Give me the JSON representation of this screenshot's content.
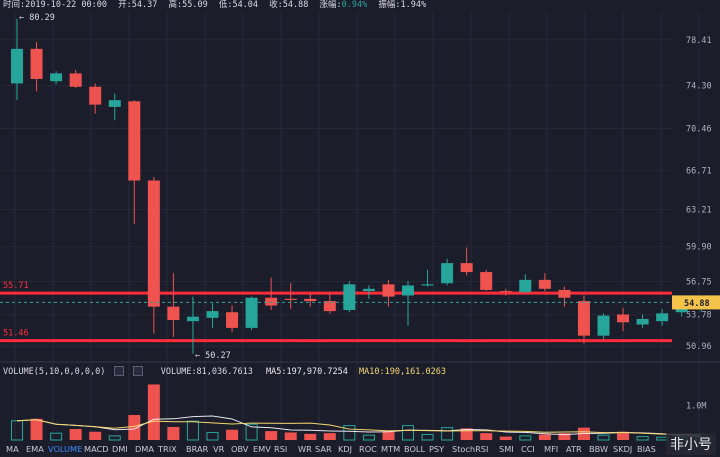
{
  "header": {
    "time_label": "时间:",
    "time": "2019-10-22 00:00",
    "open_label": "开:",
    "open": "54.37",
    "high_label": "高:",
    "high": "55.09",
    "low_label": "低:",
    "low": "54.04",
    "close_label": "收:",
    "close": "54.88",
    "change_label": "涨幅:",
    "change": "0.94%",
    "amplitude_label": "振幅:",
    "amplitude": "1.94%"
  },
  "volume_legend": {
    "label": "VOLUME(5,10,0,0,0,0)",
    "volume": "VOLUME:81,036.7613",
    "ma5": "MA5:197,970.7254",
    "ma10": "MA10:190,161.0263"
  },
  "tabs": [
    "MA",
    "EMA",
    "VOLUME",
    "MACD",
    "DMI",
    "DMA",
    "TRIX",
    "BRAR",
    "VR",
    "OBV",
    "EMV",
    "RSI",
    "WR",
    "SAR",
    "KDJ",
    "ROC",
    "MTM",
    "BOLL",
    "PSY",
    "StochRSI",
    "SMI",
    "CCI",
    "MFI",
    "ATR",
    "BBW",
    "SKDJ",
    "BIAS"
  ],
  "active_tab": "VOLUME",
  "watermark": "非小号",
  "colors": {
    "up": "#26a69a",
    "down": "#ef5350",
    "bg": "#1c1d2b",
    "level_line": "#ff2d3a",
    "ma5": "#e8e8ee",
    "ma10": "#f5d76e",
    "current_price_tag": "#f5c24a"
  },
  "chart_data": {
    "type": "candlestick",
    "y_axis_ticks": [
      "78.41",
      "74.30",
      "70.46",
      "66.71",
      "63.21",
      "59.90",
      "56.75",
      "53.78",
      "50.96"
    ],
    "ylim": [
      49.9,
      80.9
    ],
    "annotations": {
      "high_marker": "← 80.29",
      "low_marker": "← 50.27"
    },
    "levels": [
      {
        "label": "55.71",
        "value": 55.71
      },
      {
        "label": "51.46",
        "value": 51.46
      }
    ],
    "current_price": {
      "label": "54.88",
      "value": 54.88
    },
    "candles": [
      {
        "o": 74.5,
        "h": 80.29,
        "l": 73.0,
        "c": 77.6,
        "v": 0.56
      },
      {
        "o": 77.6,
        "h": 78.2,
        "l": 73.8,
        "c": 74.9,
        "v": 0.62
      },
      {
        "o": 74.7,
        "h": 75.6,
        "l": 74.4,
        "c": 75.4,
        "v": 0.2
      },
      {
        "o": 75.4,
        "h": 75.7,
        "l": 74.1,
        "c": 74.2,
        "v": 0.32
      },
      {
        "o": 74.2,
        "h": 74.5,
        "l": 71.8,
        "c": 72.6,
        "v": 0.24
      },
      {
        "o": 72.4,
        "h": 73.6,
        "l": 71.2,
        "c": 73.0,
        "v": 0.12
      },
      {
        "o": 72.9,
        "h": 73.0,
        "l": 61.9,
        "c": 65.8,
        "v": 0.73
      },
      {
        "o": 65.8,
        "h": 66.1,
        "l": 52.1,
        "c": 54.5,
        "v": 1.62
      },
      {
        "o": 54.5,
        "h": 57.5,
        "l": 51.8,
        "c": 53.3,
        "v": 0.38
      },
      {
        "o": 53.2,
        "h": 55.4,
        "l": 50.27,
        "c": 53.6,
        "v": 0.55
      },
      {
        "o": 53.5,
        "h": 54.8,
        "l": 52.6,
        "c": 54.1,
        "v": 0.22
      },
      {
        "o": 54.0,
        "h": 54.6,
        "l": 52.2,
        "c": 52.6,
        "v": 0.3
      },
      {
        "o": 52.6,
        "h": 55.4,
        "l": 52.4,
        "c": 55.3,
        "v": 0.46
      },
      {
        "o": 55.3,
        "h": 57.1,
        "l": 54.2,
        "c": 54.6,
        "v": 0.26
      },
      {
        "o": 55.2,
        "h": 56.6,
        "l": 54.3,
        "c": 55.1,
        "v": 0.22
      },
      {
        "o": 55.2,
        "h": 55.7,
        "l": 54.5,
        "c": 55.0,
        "v": 0.18
      },
      {
        "o": 55.0,
        "h": 55.8,
        "l": 53.9,
        "c": 54.1,
        "v": 0.2
      },
      {
        "o": 54.2,
        "h": 56.8,
        "l": 54.0,
        "c": 56.5,
        "v": 0.42
      },
      {
        "o": 55.9,
        "h": 56.4,
        "l": 55.2,
        "c": 56.1,
        "v": 0.14
      },
      {
        "o": 56.5,
        "h": 56.9,
        "l": 54.5,
        "c": 55.4,
        "v": 0.26
      },
      {
        "o": 55.5,
        "h": 56.8,
        "l": 52.8,
        "c": 56.4,
        "v": 0.42
      },
      {
        "o": 56.4,
        "h": 57.8,
        "l": 56.3,
        "c": 56.5,
        "v": 0.16
      },
      {
        "o": 56.6,
        "h": 58.8,
        "l": 56.4,
        "c": 58.4,
        "v": 0.36
      },
      {
        "o": 58.4,
        "h": 59.8,
        "l": 57.3,
        "c": 57.6,
        "v": 0.34
      },
      {
        "o": 57.6,
        "h": 57.8,
        "l": 55.9,
        "c": 56.0,
        "v": 0.2
      },
      {
        "o": 55.9,
        "h": 56.1,
        "l": 55.5,
        "c": 55.8,
        "v": 0.1
      },
      {
        "o": 55.8,
        "h": 57.4,
        "l": 55.7,
        "c": 56.9,
        "v": 0.12
      },
      {
        "o": 56.9,
        "h": 57.5,
        "l": 55.9,
        "c": 56.1,
        "v": 0.16
      },
      {
        "o": 56.0,
        "h": 56.3,
        "l": 54.5,
        "c": 55.3,
        "v": 0.2
      },
      {
        "o": 55.0,
        "h": 55.5,
        "l": 51.2,
        "c": 51.9,
        "v": 0.36
      },
      {
        "o": 51.9,
        "h": 53.9,
        "l": 51.6,
        "c": 53.7,
        "v": 0.14
      },
      {
        "o": 53.8,
        "h": 54.4,
        "l": 52.3,
        "c": 53.1,
        "v": 0.24
      },
      {
        "o": 52.9,
        "h": 53.8,
        "l": 52.6,
        "c": 53.4,
        "v": 0.1
      },
      {
        "o": 53.2,
        "h": 54.3,
        "l": 52.8,
        "c": 53.9,
        "v": 0.08
      },
      {
        "o": 54.0,
        "h": 55.1,
        "l": 53.6,
        "c": 54.3,
        "v": 0.06
      },
      {
        "o": 54.37,
        "h": 55.09,
        "l": 54.04,
        "c": 54.88,
        "v": 0.07
      }
    ],
    "volume_axis_ticks": [
      "1.0M"
    ]
  }
}
